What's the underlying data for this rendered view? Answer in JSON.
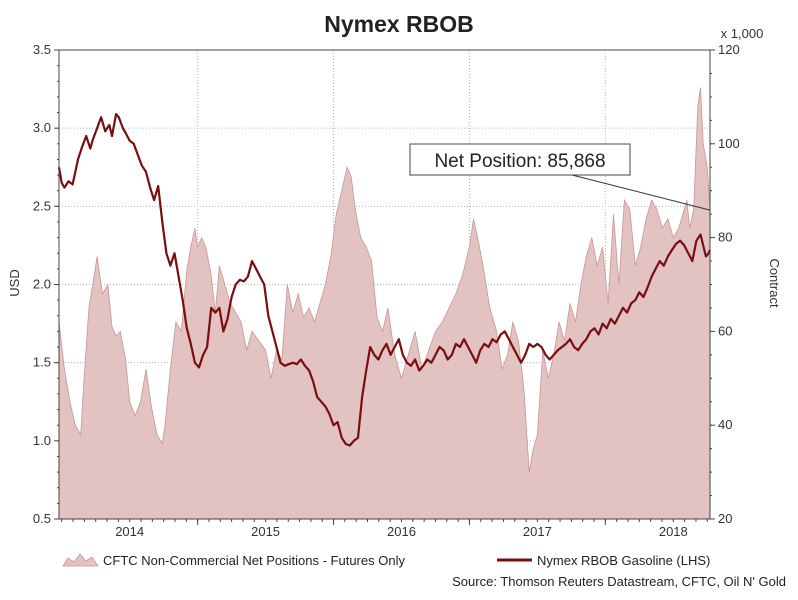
{
  "chart_data": {
    "type": "area+line",
    "title": "Nymex RBOB",
    "ylabel_left": "USD",
    "ylabel_right": "Contract",
    "right_axis_multiplier": "x 1,000",
    "ylim_left": [
      0.5,
      3.5
    ],
    "ylim_right": [
      20,
      120
    ],
    "xlim": [
      2013.48,
      2018.27
    ],
    "left_ticks": [
      "0.5",
      "1.0",
      "1.5",
      "2.0",
      "2.5",
      "3.0",
      "3.5"
    ],
    "right_ticks": [
      "20",
      "40",
      "60",
      "80",
      "100",
      "120"
    ],
    "x_ticks": [
      {
        "label": "2014",
        "pos": 2014.0
      },
      {
        "label": "2015",
        "pos": 2015.0
      },
      {
        "label": "2016",
        "pos": 2016.0
      },
      {
        "label": "2017",
        "pos": 2017.0
      },
      {
        "label": "2018",
        "pos": 2018.0
      }
    ],
    "x_year_boundaries": [
      2014.5,
      2015.5,
      2016.5,
      2017.5
    ],
    "grid": true,
    "annotation": {
      "text": "Net Position: 85,868",
      "target_x": 2018.27,
      "target_y_right": 85.868
    },
    "legend": [
      {
        "label": "CFTC Non-Commercial Net Positions - Futures Only",
        "kind": "area"
      },
      {
        "label": "Nymex RBOB Gasoline (LHS)",
        "kind": "line"
      }
    ],
    "source": "Source: Thomson Reuters Datastream, CFTC, Oil N' Gold",
    "colors": {
      "area_fill": "#e3c2c2",
      "area_edge": "#c99595",
      "line": "#7a0e0e",
      "grid": "#b5b5b5",
      "axis": "#444444"
    },
    "series": [
      {
        "name": "CFTC Non-Commercial Net Positions - Futures Only",
        "axis": "right",
        "x": [
          2013.48,
          2013.52,
          2013.56,
          2013.6,
          2013.64,
          2013.66,
          2013.7,
          2013.74,
          2013.76,
          2013.8,
          2013.84,
          2013.87,
          2013.9,
          2013.93,
          2013.97,
          2014.0,
          2014.04,
          2014.08,
          2014.12,
          2014.16,
          2014.2,
          2014.24,
          2014.26,
          2014.3,
          2014.34,
          2014.38,
          2014.42,
          2014.45,
          2014.48,
          2014.5,
          2014.53,
          2014.56,
          2014.6,
          2014.63,
          2014.66,
          2014.7,
          2014.74,
          2014.78,
          2014.82,
          2014.86,
          2014.9,
          2014.95,
          2015.0,
          2015.04,
          2015.08,
          2015.12,
          2015.16,
          2015.2,
          2015.24,
          2015.28,
          2015.32,
          2015.36,
          2015.4,
          2015.44,
          2015.48,
          2015.52,
          2015.56,
          2015.6,
          2015.63,
          2015.66,
          2015.7,
          2015.74,
          2015.78,
          2015.82,
          2015.86,
          2015.9,
          2015.95,
          2016.0,
          2016.05,
          2016.1,
          2016.15,
          2016.2,
          2016.25,
          2016.3,
          2016.35,
          2016.4,
          2016.45,
          2016.5,
          2016.53,
          2016.56,
          2016.6,
          2016.65,
          2016.7,
          2016.74,
          2016.78,
          2016.82,
          2016.86,
          2016.9,
          2016.94,
          2016.97,
          2017.0,
          2017.04,
          2017.08,
          2017.12,
          2017.16,
          2017.2,
          2017.24,
          2017.28,
          2017.32,
          2017.36,
          2017.4,
          2017.44,
          2017.48,
          2017.52,
          2017.56,
          2017.6,
          2017.64,
          2017.68,
          2017.72,
          2017.76,
          2017.8,
          2017.84,
          2017.88,
          2017.92,
          2017.96,
          2018.0,
          2018.04,
          2018.08,
          2018.1,
          2018.12,
          2018.15,
          2018.18,
          2018.2,
          2018.22,
          2018.25,
          2018.27
        ],
        "values": [
          62,
          52,
          45,
          40,
          38,
          48,
          65,
          72,
          76,
          68,
          70,
          61,
          59,
          60,
          54,
          45,
          42,
          45,
          52,
          44,
          38,
          36,
          40,
          52,
          62,
          60,
          73,
          78,
          82,
          78,
          80,
          78,
          72,
          64,
          74,
          70,
          66,
          64,
          62,
          56,
          60,
          58,
          56,
          50,
          56,
          54,
          70,
          64,
          68,
          63,
          65,
          62,
          66,
          70,
          76,
          85,
          90,
          95,
          93,
          86,
          80,
          78,
          75,
          63,
          60,
          65,
          55,
          50,
          55,
          60,
          52,
          56,
          60,
          62,
          65,
          68,
          72,
          78,
          84,
          80,
          74,
          65,
          60,
          52,
          55,
          62,
          58,
          48,
          30,
          35,
          38,
          56,
          50,
          55,
          62,
          58,
          66,
          62,
          70,
          76,
          80,
          74,
          78,
          66,
          85,
          70,
          88,
          86,
          74,
          78,
          84,
          88,
          86,
          82,
          84,
          80,
          82,
          86,
          88,
          82,
          86,
          108,
          112,
          100,
          95,
          86
        ]
      },
      {
        "name": "Nymex RBOB Gasoline (LHS)",
        "axis": "left",
        "x": [
          2013.48,
          2013.5,
          2013.52,
          2013.55,
          2013.58,
          2013.62,
          2013.65,
          2013.68,
          2013.71,
          2013.73,
          2013.76,
          2013.79,
          2013.82,
          2013.85,
          2013.87,
          2013.9,
          2013.92,
          2013.95,
          2013.97,
          2014.0,
          2014.03,
          2014.06,
          2014.09,
          2014.12,
          2014.15,
          2014.18,
          2014.21,
          2014.24,
          2014.27,
          2014.3,
          2014.33,
          2014.36,
          2014.39,
          2014.42,
          2014.45,
          2014.48,
          2014.51,
          2014.54,
          2014.57,
          2014.6,
          2014.63,
          2014.66,
          2014.69,
          2014.72,
          2014.75,
          2014.78,
          2014.81,
          2014.84,
          2014.87,
          2014.9,
          2014.93,
          2014.96,
          2014.99,
          2015.02,
          2015.05,
          2015.08,
          2015.11,
          2015.14,
          2015.17,
          2015.2,
          2015.23,
          2015.26,
          2015.29,
          2015.32,
          2015.35,
          2015.38,
          2015.41,
          2015.44,
          2015.47,
          2015.5,
          2015.53,
          2015.56,
          2015.59,
          2015.62,
          2015.65,
          2015.68,
          2015.71,
          2015.74,
          2015.77,
          2015.8,
          2015.83,
          2015.86,
          2015.89,
          2015.92,
          2015.95,
          2015.98,
          2016.01,
          2016.04,
          2016.07,
          2016.1,
          2016.13,
          2016.16,
          2016.19,
          2016.22,
          2016.25,
          2016.28,
          2016.31,
          2016.34,
          2016.37,
          2016.4,
          2016.43,
          2016.46,
          2016.49,
          2016.52,
          2016.55,
          2016.58,
          2016.61,
          2016.64,
          2016.67,
          2016.7,
          2016.73,
          2016.76,
          2016.79,
          2016.82,
          2016.85,
          2016.88,
          2016.91,
          2016.94,
          2016.97,
          2017.0,
          2017.03,
          2017.06,
          2017.09,
          2017.12,
          2017.15,
          2017.18,
          2017.21,
          2017.24,
          2017.27,
          2017.3,
          2017.33,
          2017.36,
          2017.39,
          2017.42,
          2017.45,
          2017.48,
          2017.51,
          2017.54,
          2017.57,
          2017.6,
          2017.63,
          2017.66,
          2017.69,
          2017.72,
          2017.75,
          2017.78,
          2017.81,
          2017.84,
          2017.87,
          2017.9,
          2017.93,
          2017.96,
          2017.99,
          2018.02,
          2018.05,
          2018.08,
          2018.11,
          2018.14,
          2018.17,
          2018.2,
          2018.22,
          2018.24,
          2018.26,
          2018.27
        ],
        "values": [
          2.75,
          2.65,
          2.62,
          2.66,
          2.64,
          2.8,
          2.88,
          2.95,
          2.87,
          2.93,
          3.0,
          3.07,
          2.98,
          3.02,
          2.95,
          3.09,
          3.07,
          3.0,
          2.97,
          2.92,
          2.9,
          2.83,
          2.76,
          2.72,
          2.62,
          2.54,
          2.63,
          2.4,
          2.2,
          2.12,
          2.2,
          2.05,
          1.9,
          1.72,
          1.62,
          1.5,
          1.47,
          1.55,
          1.6,
          1.85,
          1.82,
          1.85,
          1.7,
          1.78,
          1.92,
          2.0,
          2.03,
          2.02,
          2.05,
          2.15,
          2.1,
          2.05,
          2.0,
          1.8,
          1.7,
          1.6,
          1.5,
          1.48,
          1.49,
          1.5,
          1.49,
          1.52,
          1.48,
          1.45,
          1.38,
          1.28,
          1.25,
          1.22,
          1.17,
          1.1,
          1.12,
          1.02,
          0.98,
          0.97,
          1.0,
          1.02,
          1.28,
          1.45,
          1.6,
          1.55,
          1.52,
          1.58,
          1.62,
          1.55,
          1.6,
          1.65,
          1.55,
          1.5,
          1.48,
          1.52,
          1.45,
          1.48,
          1.52,
          1.5,
          1.55,
          1.6,
          1.58,
          1.52,
          1.55,
          1.62,
          1.6,
          1.65,
          1.6,
          1.55,
          1.5,
          1.58,
          1.62,
          1.6,
          1.65,
          1.63,
          1.68,
          1.7,
          1.65,
          1.6,
          1.55,
          1.5,
          1.55,
          1.62,
          1.6,
          1.62,
          1.6,
          1.55,
          1.52,
          1.55,
          1.58,
          1.6,
          1.62,
          1.65,
          1.6,
          1.58,
          1.62,
          1.65,
          1.7,
          1.72,
          1.68,
          1.75,
          1.72,
          1.78,
          1.75,
          1.8,
          1.85,
          1.82,
          1.88,
          1.9,
          1.95,
          1.92,
          1.98,
          2.05,
          2.1,
          2.15,
          2.12,
          2.18,
          2.22,
          2.26,
          2.28,
          2.25,
          2.2,
          2.15,
          2.28,
          2.32,
          2.25,
          2.18,
          2.2,
          2.22
        ]
      }
    ]
  }
}
